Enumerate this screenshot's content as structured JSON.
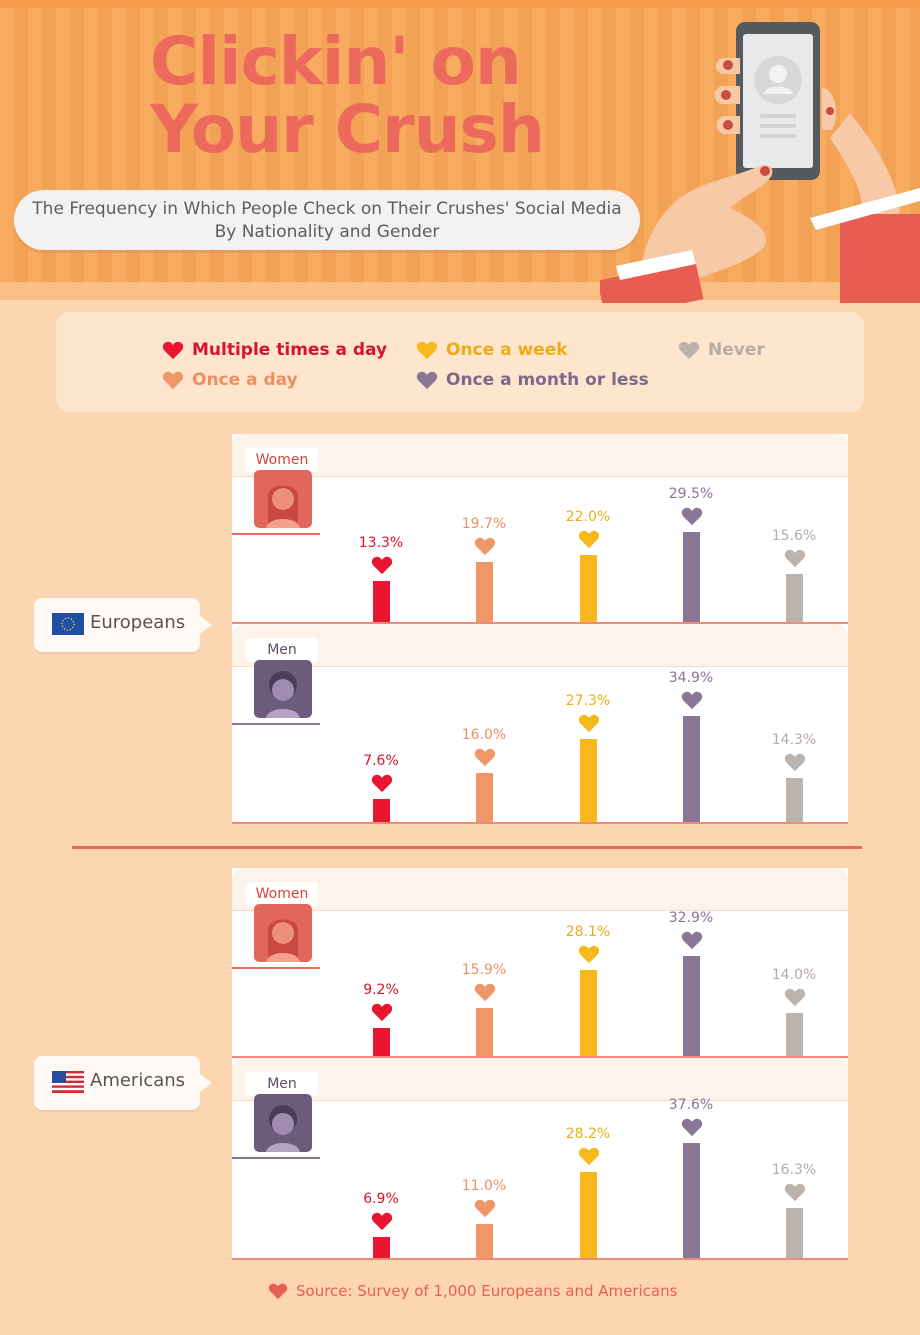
{
  "header": {
    "title_line1": "Clickin' on",
    "title_line2": "Your Crush",
    "subtitle_line1": "The Frequency in Which People Check on Their Crushes' Social Media",
    "subtitle_line2": "By Nationality and Gender"
  },
  "legend": [
    {
      "label": "Multiple times a day",
      "color": "#e8162f"
    },
    {
      "label": "Once a day",
      "color": "#f0976a"
    },
    {
      "label": "Once a week",
      "color": "#f6b81b"
    },
    {
      "label": "Once a month or less",
      "color": "#8b7795"
    },
    {
      "label": "Never",
      "color": "#bcb3ad"
    }
  ],
  "chart_data": {
    "type": "bar",
    "categories": [
      "Multiple times a day",
      "Once a day",
      "Once a week",
      "Once a month or less",
      "Never"
    ],
    "groups": [
      {
        "nationality": "Europeans",
        "panels": [
          {
            "gender": "Women",
            "values": [
              13.3,
              19.7,
              22.0,
              29.5,
              15.6
            ],
            "labels": [
              "13.3%",
              "19.7%",
              "22.0%",
              "29.5%",
              "15.6%"
            ]
          },
          {
            "gender": "Men",
            "values": [
              7.6,
              16.0,
              27.3,
              34.9,
              14.3
            ],
            "labels": [
              "7.6%",
              "16.0%",
              "27.3%",
              "34.9%",
              "14.3%"
            ]
          }
        ]
      },
      {
        "nationality": "Americans",
        "panels": [
          {
            "gender": "Women",
            "values": [
              9.2,
              15.9,
              28.1,
              32.9,
              14.0
            ],
            "labels": [
              "9.2%",
              "15.9%",
              "28.1%",
              "32.9%",
              "14.0%"
            ]
          },
          {
            "gender": "Men",
            "values": [
              6.9,
              11.0,
              28.2,
              37.6,
              16.3
            ],
            "labels": [
              "6.9%",
              "11.0%",
              "28.2%",
              "37.6%",
              "16.3%"
            ]
          }
        ]
      }
    ],
    "colors": [
      "#e8162f",
      "#f0976a",
      "#f6b81b",
      "#8b7795",
      "#bcb3ad"
    ],
    "label_colors": [
      "#d8132b",
      "#ee8f62",
      "#efac14",
      "#8a7595",
      "#b5aca6"
    ],
    "ylim": [
      0,
      40
    ],
    "grid": false
  },
  "footer": {
    "source": "Source: Survey of 1,000 Europeans and Americans"
  }
}
